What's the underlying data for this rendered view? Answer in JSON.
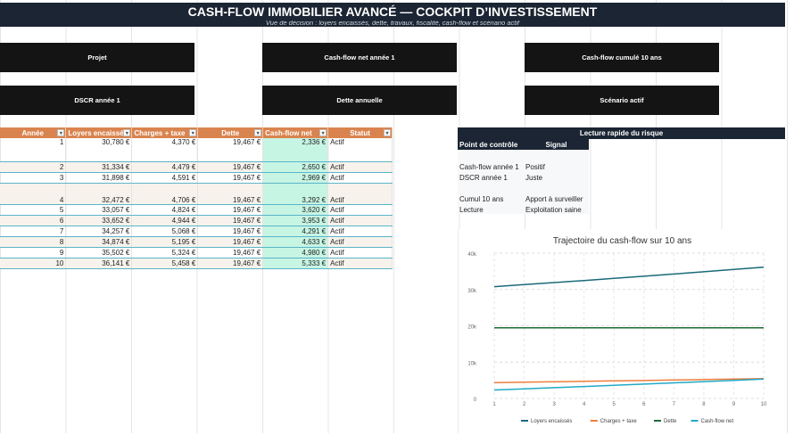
{
  "header": {
    "title": "CASH-FLOW IMMOBILIER AVANCÉ — COCKPIT D’INVESTISSEMENT",
    "subtitle": "Vue de décision : loyers encaissés, dette, travaux, fiscalité, cash-flow et scénario actif"
  },
  "kpis": {
    "projet": "Projet",
    "cf_net": "Cash-flow net année 1",
    "cf_cumul": "Cash-flow cumulé 10 ans",
    "dscr": "DSCR année 1",
    "dette": "Dette annuelle",
    "scenario": "Scénario actif"
  },
  "table": {
    "headers": [
      "Année",
      "Loyers encaissés",
      "Charges + taxe",
      "Dette",
      "Cash-flow net",
      "Statut"
    ],
    "filter_icon": "▾",
    "rows": [
      {
        "annee": "1",
        "loyers": "30,780 €",
        "charges": "4,370 €",
        "dette": "19,467 €",
        "cf": "2,336 €",
        "statut": "Actif"
      },
      {
        "annee": "2",
        "loyers": "31,334 €",
        "charges": "4,479 €",
        "dette": "19,467 €",
        "cf": "2,650 €",
        "statut": "Actif"
      },
      {
        "annee": "3",
        "loyers": "31,898 €",
        "charges": "4,591 €",
        "dette": "19,467 €",
        "cf": "2,969 €",
        "statut": "Actif"
      },
      {
        "annee": "4",
        "loyers": "32,472 €",
        "charges": "4,706 €",
        "dette": "19,467 €",
        "cf": "3,292 €",
        "statut": "Actif"
      },
      {
        "annee": "5",
        "loyers": "33,057 €",
        "charges": "4,824 €",
        "dette": "19,467 €",
        "cf": "3,620 €",
        "statut": "Actif"
      },
      {
        "annee": "6",
        "loyers": "33,652 €",
        "charges": "4,944 €",
        "dette": "19,467 €",
        "cf": "3,953 €",
        "statut": "Actif"
      },
      {
        "annee": "7",
        "loyers": "34,257 €",
        "charges": "5,068 €",
        "dette": "19,467 €",
        "cf": "4,291 €",
        "statut": "Actif"
      },
      {
        "annee": "8",
        "loyers": "34,874 €",
        "charges": "5,195 €",
        "dette": "19,467 €",
        "cf": "4,633 €",
        "statut": "Actif"
      },
      {
        "annee": "9",
        "loyers": "35,502 €",
        "charges": "5,324 €",
        "dette": "19,467 €",
        "cf": "4,980 €",
        "statut": "Actif"
      },
      {
        "annee": "10",
        "loyers": "36,141 €",
        "charges": "5,458 €",
        "dette": "19,467 €",
        "cf": "5,333 €",
        "statut": "Actif"
      }
    ]
  },
  "risk": {
    "title": "Lecture rapide du risque",
    "col1": "Point de contrôle",
    "col2": "Signal",
    "rows": [
      {
        "point": "Cash-flow année 1",
        "signal": "Positif"
      },
      {
        "point": "DSCR année 1",
        "signal": "Juste"
      },
      {
        "point": "Cumul 10 ans",
        "signal": "Apport à surveiller"
      },
      {
        "point": "Lecture",
        "signal": "Exploitation saine"
      }
    ]
  },
  "chart_data": {
    "type": "line",
    "title": "Trajectoire du cash-flow sur 10 ans",
    "x": [
      1,
      2,
      3,
      4,
      5,
      6,
      7,
      8,
      9,
      10
    ],
    "ylim": [
      0,
      40000
    ],
    "yticks": [
      "0",
      "10k",
      "20k",
      "30k",
      "40k"
    ],
    "grid": true,
    "legend_position": "bottom",
    "series": [
      {
        "name": "Loyers encaissés",
        "color": "#1a6a7a",
        "values": [
          30780,
          31334,
          31898,
          32472,
          33057,
          33652,
          34257,
          34874,
          35502,
          36141
        ]
      },
      {
        "name": "Charges + taxe",
        "color": "#ee7d3b",
        "values": [
          4370,
          4479,
          4591,
          4706,
          4824,
          4944,
          5068,
          5195,
          5324,
          5458
        ]
      },
      {
        "name": "Dette",
        "color": "#1e6b35",
        "values": [
          19467,
          19467,
          19467,
          19467,
          19467,
          19467,
          19467,
          19467,
          19467,
          19467
        ]
      },
      {
        "name": "Cash-flow net",
        "color": "#21a9c6",
        "values": [
          2336,
          2650,
          2969,
          3292,
          3620,
          3953,
          4291,
          4633,
          4980,
          5333
        ]
      }
    ]
  }
}
